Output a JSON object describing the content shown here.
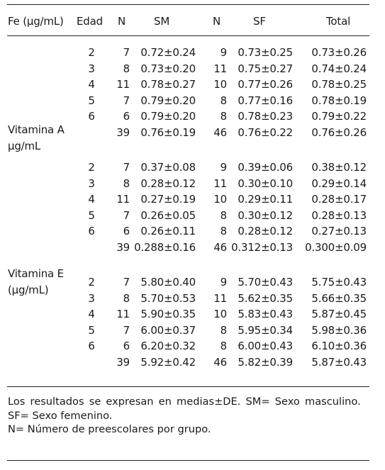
{
  "header": {
    "param": "Fe (µg/mL)",
    "edad": "Edad",
    "n1": "N",
    "sm": "SM",
    "n2": "N",
    "sf": "SF",
    "total": "Total"
  },
  "groups": [
    {
      "label_lines": [],
      "rows": [
        {
          "edad": "2",
          "n1": "7",
          "sm": "0.72±0.24",
          "n2": "9",
          "sf": "0.73±0.25",
          "total": "0.73±0.26"
        },
        {
          "edad": "3",
          "n1": "8",
          "sm": "0.73±0.20",
          "n2": "11",
          "sf": "0.75±0.27",
          "total": "0.74±0.24"
        },
        {
          "edad": "4",
          "n1": "11",
          "sm": "0.78±0.27",
          "n2": "10",
          "sf": "0.77±0.26",
          "total": "0.78±0.25"
        },
        {
          "edad": "5",
          "n1": "7",
          "sm": "0.79±0.20",
          "n2": "8",
          "sf": "0.77±0.16",
          "total": "0.78±0.19"
        },
        {
          "edad": "6",
          "n1": "6",
          "sm": "0.79±0.20",
          "n2": "8",
          "sf": "0.78±0.23",
          "total": "0.79±0.22"
        },
        {
          "edad": "",
          "n1": "39",
          "sm": "0.76±0.19",
          "n2": "46",
          "sf": "0.76±0.22",
          "total": "0.76±0.26"
        }
      ]
    },
    {
      "label_lines": [
        "Vitamina A",
        "µg/mL"
      ],
      "rows": [
        {
          "edad": "2",
          "n1": "7",
          "sm": "0.37±0.08",
          "n2": "9",
          "sf": "0.39±0.06",
          "total": "0.38±0.12"
        },
        {
          "edad": "3",
          "n1": "8",
          "sm": "0.28±0.12",
          "n2": "11",
          "sf": "0.30±0.10",
          "total": "0.29±0.14"
        },
        {
          "edad": "4",
          "n1": "11",
          "sm": "0.27±0.19",
          "n2": "10",
          "sf": "0.29±0.11",
          "total": "0.28±0.17"
        },
        {
          "edad": "5",
          "n1": "7",
          "sm": "0.26±0.05",
          "n2": "8",
          "sf": "0.30±0.12",
          "total": "0.28±0.13"
        },
        {
          "edad": "6",
          "n1": "6",
          "sm": "0.26±0.11",
          "n2": "8",
          "sf": "0.28±0.12",
          "total": "0.27±0.13"
        },
        {
          "edad": "",
          "n1": "39",
          "sm": "0.288±0.16",
          "n2": "46",
          "sf": "0.312±0.13",
          "total": "0.300±0.09"
        }
      ]
    },
    {
      "label_lines": [
        "Vitamina E",
        "(µg/mL)"
      ],
      "rows": [
        {
          "edad": "2",
          "n1": "7",
          "sm": "5.80±0.40",
          "n2": "9",
          "sf": "5.70±0.43",
          "total": "5.75±0.43"
        },
        {
          "edad": "3",
          "n1": "8",
          "sm": "5.70±0.53",
          "n2": "11",
          "sf": "5.62±0.35",
          "total": "5.66±0.35"
        },
        {
          "edad": "4",
          "n1": "11",
          "sm": "5.90±0.35",
          "n2": "10",
          "sf": "5.83±0.43",
          "total": "5.87±0.45"
        },
        {
          "edad": "5",
          "n1": "7",
          "sm": "6.00±0.37",
          "n2": "8",
          "sf": "5.95±0.34",
          "total": "5.98±0.36"
        },
        {
          "edad": "6",
          "n1": "6",
          "sm": "6.20±0.32",
          "n2": "8",
          "sf": "6.00±0.43",
          "total": "6.10±0.36"
        },
        {
          "edad": "",
          "n1": "39",
          "sm": "5.92±0.42",
          "n2": "46",
          "sf": "5.82±0.39",
          "total": "5.87±0.43"
        }
      ]
    }
  ],
  "footnotes": [
    "Los resultados se expresan en medias±DE. SM= Sexo masculino.",
    "SF= Sexo femenino.",
    "N= Número de preescolares por grupo."
  ]
}
